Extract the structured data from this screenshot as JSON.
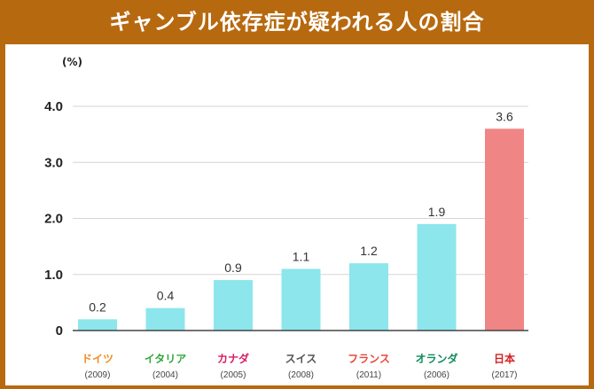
{
  "chart_data": {
    "type": "bar",
    "title": "ギャンブル依存症が疑われる人の割合",
    "ylabel": "(%)",
    "ylim": [
      0,
      4.0
    ],
    "yticks": [
      "0",
      "1.0",
      "2.0",
      "3.0",
      "4.0"
    ],
    "ytick_values": [
      0,
      1,
      2,
      3,
      4
    ],
    "grid": true,
    "categories": [
      "ドイツ",
      "イタリア",
      "カナダ",
      "スイス",
      "フランス",
      "オランダ",
      "日本"
    ],
    "years": [
      "(2009)",
      "(2004)",
      "(2005)",
      "(2008)",
      "(2011)",
      "(2006)",
      "(2017)"
    ],
    "values": [
      0.2,
      0.4,
      0.9,
      1.1,
      1.2,
      1.9,
      3.6
    ],
    "value_labels": [
      "0.2",
      "0.4",
      "0.9",
      "1.1",
      "1.2",
      "1.9",
      "3.6"
    ],
    "bar_colors": [
      "#8de6ec",
      "#8de6ec",
      "#8de6ec",
      "#8de6ec",
      "#8de6ec",
      "#8de6ec",
      "#ef8584"
    ],
    "category_colors": [
      "#f28a1e",
      "#2fa93a",
      "#d81d63",
      "#555555",
      "#e8483f",
      "#0f8b5b",
      "#d81d20"
    ]
  }
}
